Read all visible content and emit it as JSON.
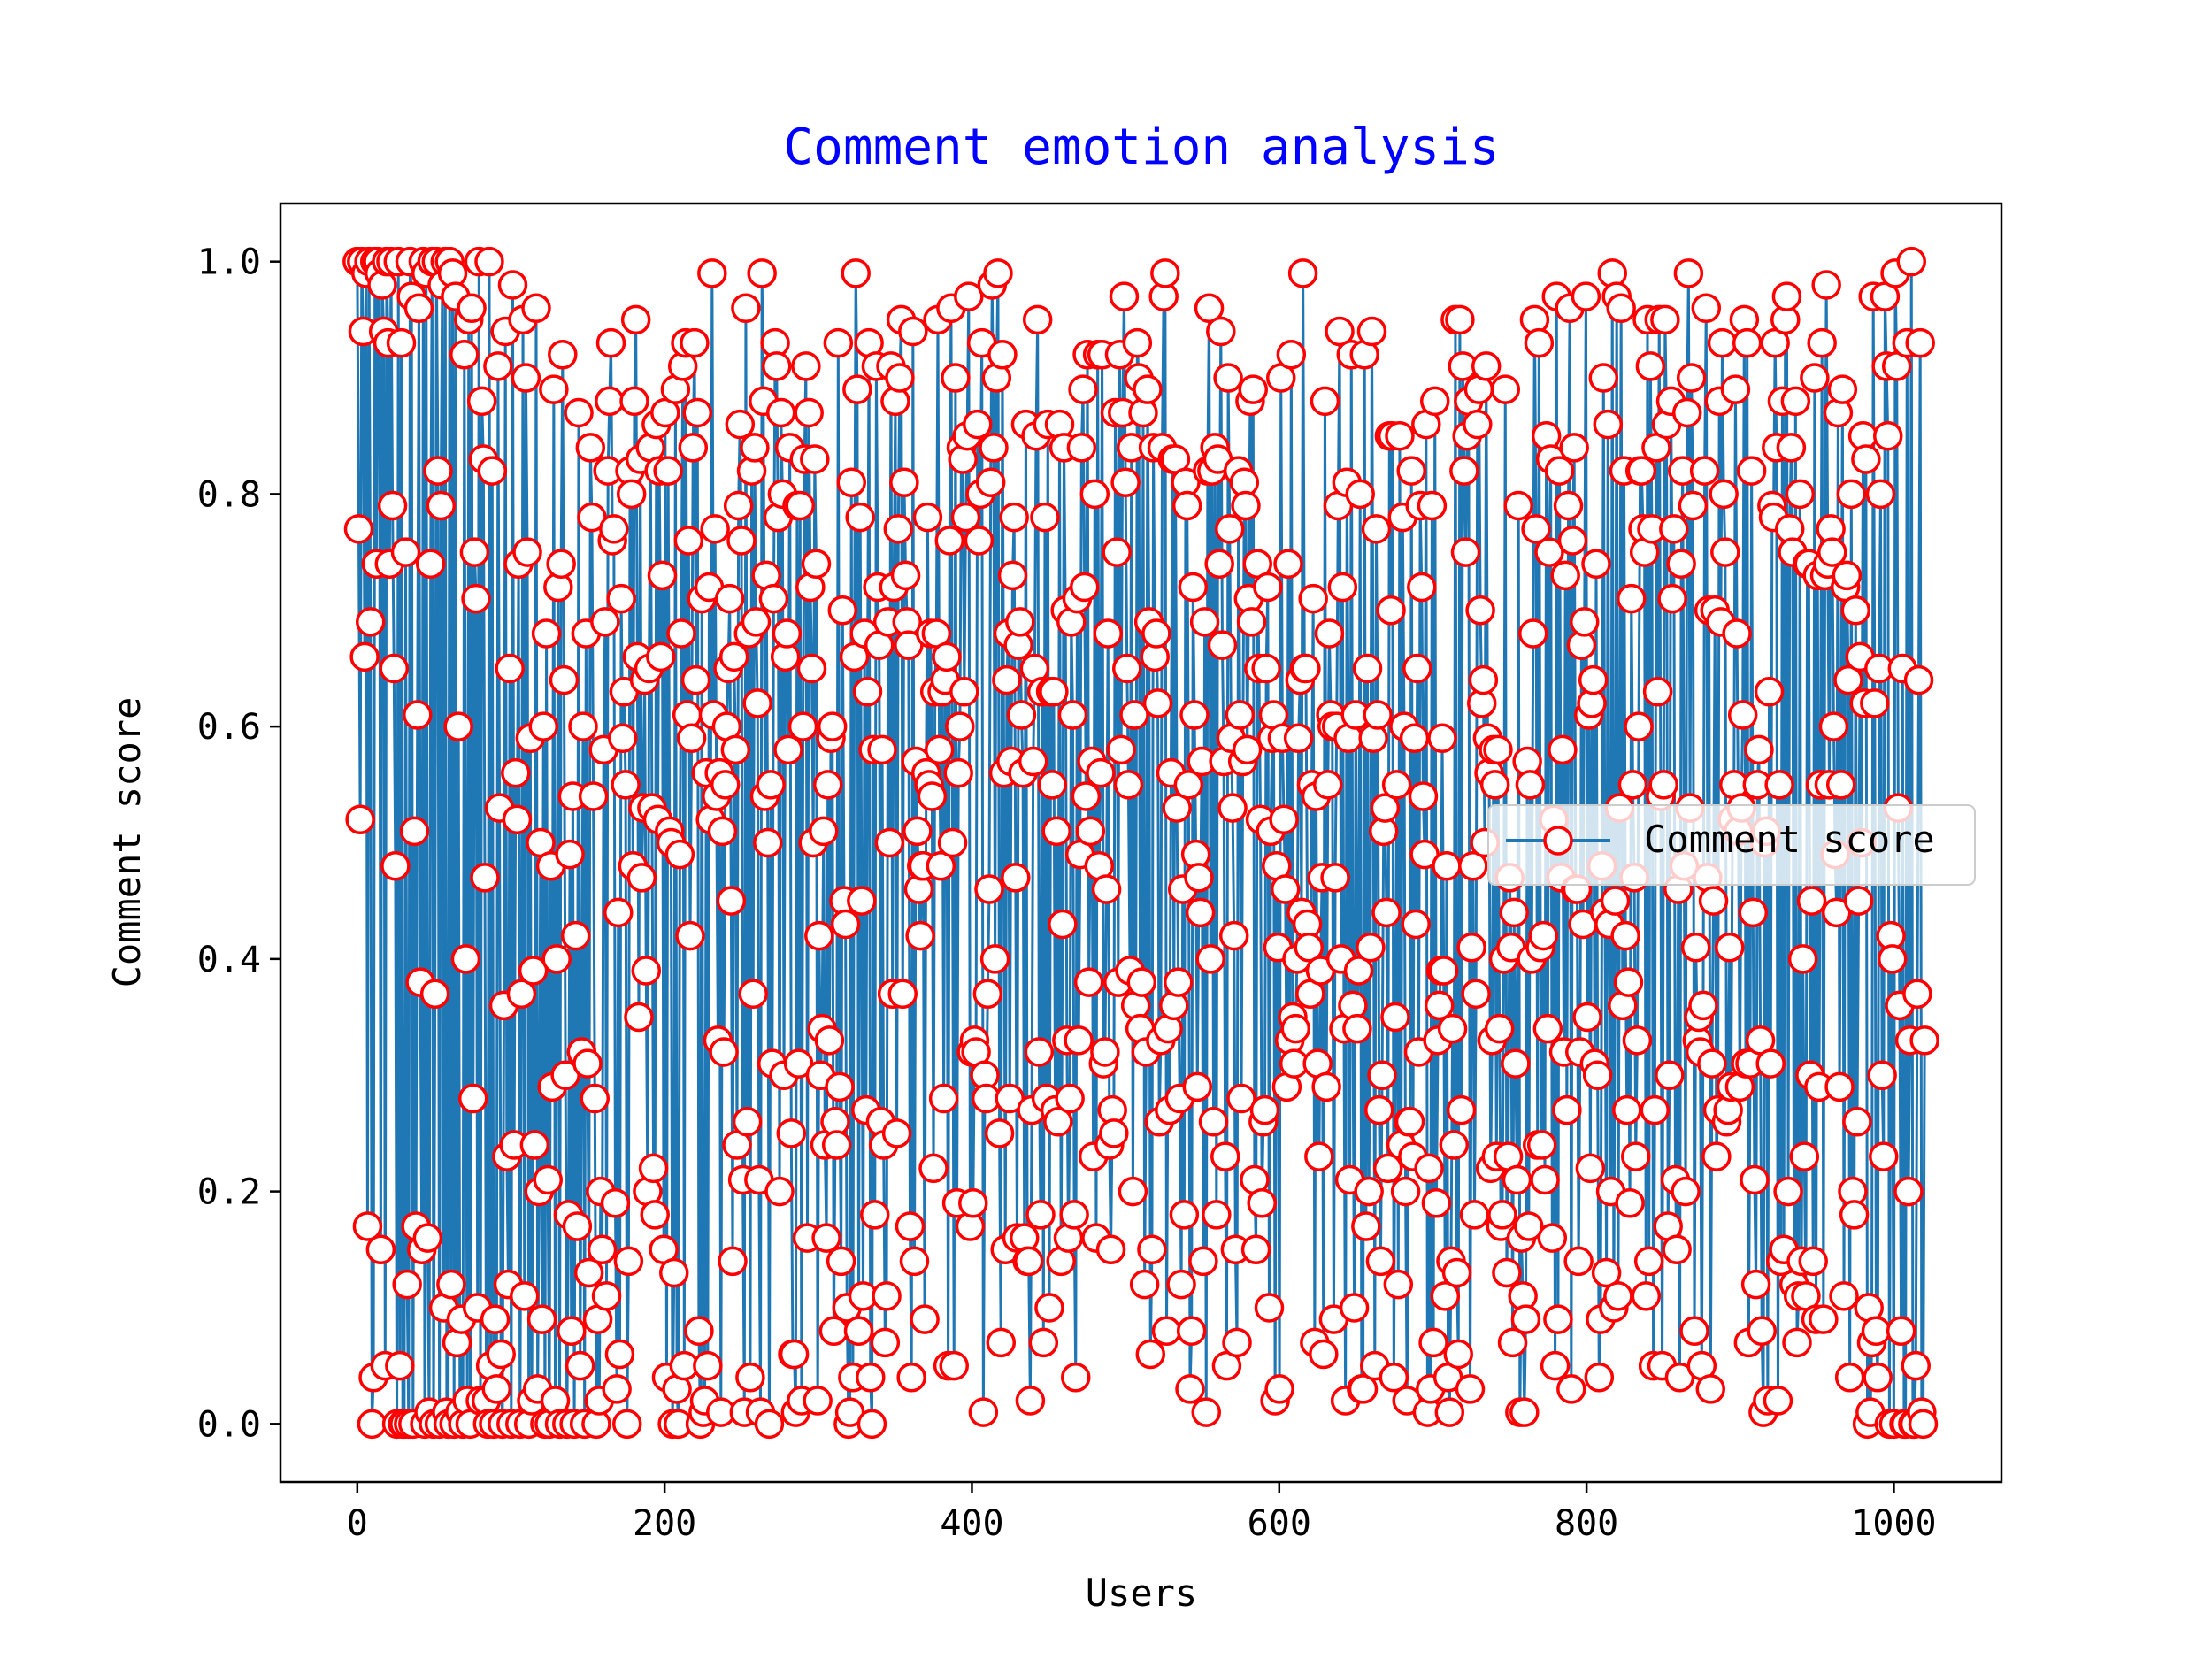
{
  "chart_data": {
    "type": "line",
    "title": "Comment emotion analysis",
    "xlabel": "Users",
    "ylabel": "Comment score",
    "xlim": [
      -50,
      1070
    ],
    "ylim": [
      -0.05,
      1.05
    ],
    "xticks": [
      "0",
      "200",
      "400",
      "600",
      "800",
      "1000"
    ],
    "yticks": [
      "0.0",
      "0.2",
      "0.4",
      "0.6",
      "0.8",
      "1.0"
    ],
    "grid": false,
    "legend_position": "center-right",
    "colors": {
      "title": "#0000ff",
      "line": "#1f77b4",
      "marker_edge": "#ff0000",
      "marker_face": "#ffffff"
    },
    "series": [
      {
        "name": "Comment score",
        "x_start": 0,
        "x_end": 1020,
        "point_count": 1021,
        "values": [
          1.0,
          0.77,
          0.52,
          1.0,
          0.94,
          0.66,
          0.99,
          0.17,
          1.0,
          0.69,
          0.0,
          0.04,
          1.0,
          0.74,
          1.0,
          0.99,
          0.15,
          0.98,
          0.94,
          0.05,
          1.0,
          0.93,
          0.74,
          1.0,
          0.79,
          0.65,
          0.48,
          0.0,
          1.0,
          0.05,
          0.93,
          0.0,
          0.0,
          0.75,
          0.12,
          0.0,
          1.0,
          0.97,
          0.0,
          0.51,
          0.17,
          0.61,
          0.96,
          0.38,
          0.15,
          1.0,
          0.0,
          0.99,
          0.16,
          0.01,
          0.74,
          1.0,
          0.0,
          0.37,
          1.0,
          0.82,
          0.0,
          0.79,
          0.98,
          0.1,
          1.0,
          0.01,
          0.0,
          1.0,
          0.12,
          0.99,
          0.0,
          0.97,
          0.07,
          0.6,
          0.01,
          0.09,
          0.0,
          0.92,
          0.4,
          0.02,
          0.95,
          0.0,
          0.96,
          0.28,
          0.75,
          0.71,
          0.1,
          1.0,
          0.02,
          0.88,
          0.83,
          0.47,
          0.02,
          0.0,
          1.0,
          0.05,
          0.82,
          0.0,
          0.09,
          0.03,
          0.91,
          0.53,
          0.06,
          0.0,
          0.36,
          0.94,
          0.23,
          0.12,
          0.65,
          0.0,
          0.98,
          0.24,
          0.56,
          0.52,
          0.74,
          0.0,
          0.37,
          0.95,
          0.11,
          0.9,
          0.75,
          0.0,
          0.59,
          0.02,
          0.39,
          0.24,
          0.96,
          0.03,
          0.2,
          0.5,
          0.09,
          0.6,
          0.0,
          0.68,
          0.21,
          0.0,
          0.48,
          0.29,
          0.89,
          0.02,
          0.4,
          0.72,
          0.0,
          0.74,
          0.92,
          0.64,
          0.3,
          0.0,
          0.18,
          0.49,
          0.08,
          0.54,
          0.0,
          0.42,
          0.17,
          0.87,
          0.05,
          0.32,
          0.6,
          0.0,
          0.68,
          0.31,
          0.13,
          0.84,
          0.78,
          0.54,
          0.28,
          0.0,
          0.09,
          0.02,
          0.2,
          0.15,
          0.58,
          0.69,
          0.11,
          0.82,
          0.88,
          0.93,
          0.76,
          0.77,
          0.19,
          0.03,
          0.44,
          0.06,
          0.71,
          0.59,
          0.63,
          0.55,
          0.0,
          0.14,
          0.82,
          0.8,
          0.48,
          0.88,
          0.95,
          0.66,
          0.35,
          0.83,
          0.47,
          0.53,
          0.64,
          0.39,
          0.2,
          0.65,
          0.84,
          0.53,
          0.22,
          0.18,
          0.86,
          0.52,
          0.82,
          0.66,
          0.73,
          0.15,
          0.87,
          0.04,
          0.82,
          0.51,
          0.5,
          0.0,
          0.13,
          0.89,
          0.03,
          0.0,
          0.49,
          0.68,
          0.91,
          0.05,
          0.93,
          0.61,
          0.76,
          0.42,
          0.59,
          0.84,
          0.93,
          0.64,
          0.87,
          0.08,
          0.0,
          0.71,
          0.01,
          0.02,
          0.56,
          0.05,
          0.72,
          0.52,
          0.99,
          0.61,
          0.77,
          0.54,
          0.33,
          0.56,
          0.01,
          0.51,
          0.32,
          0.55,
          0.6,
          0.65,
          0.71,
          0.45,
          0.14,
          0.66,
          0.58,
          0.24,
          0.79,
          0.86,
          0.76,
          0.21,
          0.01,
          0.96,
          0.26,
          0.68,
          0.04,
          0.82,
          0.37,
          0.84,
          0.69,
          0.62,
          0.21,
          0.01,
          0.99,
          0.88,
          0.54,
          0.73,
          0.5,
          0.0,
          0.55,
          0.31,
          0.71,
          0.93,
          0.91,
          0.78,
          0.2,
          0.87,
          0.8,
          0.3,
          0.66,
          0.68,
          0.58,
          0.84,
          0.25,
          0.06,
          0.06,
          0.01,
          0.79,
          0.31,
          0.79,
          0.02,
          0.6,
          0.83,
          0.91,
          0.16,
          0.87,
          0.72,
          0.65,
          0.5,
          0.83,
          0.74,
          0.02,
          0.42,
          0.3,
          0.34,
          0.51,
          0.24,
          0.16,
          0.55,
          0.33,
          0.59,
          0.6,
          0.08,
          0.26,
          0.24,
          0.93,
          0.29,
          0.14,
          0.7,
          0.45,
          0.43,
          0.1,
          0.0,
          0.01,
          0.81,
          0.04,
          0.66,
          0.99,
          0.89,
          0.08,
          0.78,
          0.45,
          0.11,
          0.68,
          0.27,
          0.63,
          0.93,
          0.04,
          0.0,
          0.58,
          0.18,
          0.91,
          0.72,
          0.67,
          0.26,
          0.58,
          0.24,
          0.07,
          0.11,
          0.69,
          0.5,
          0.91,
          0.37,
          0.72,
          0.88,
          0.25,
          0.77,
          0.9,
          0.95,
          0.37,
          0.81,
          0.73,
          0.69,
          0.67,
          0.17,
          0.04,
          0.94,
          0.14,
          0.57,
          0.51,
          0.46,
          0.42,
          0.48,
          0.48,
          0.09,
          0.56,
          0.78,
          0.55,
          0.68,
          0.54,
          0.22,
          0.63,
          0.68,
          0.95,
          0.58,
          0.48,
          0.63,
          0.28,
          0.64,
          0.66,
          0.05,
          0.76,
          0.96,
          0.5,
          0.05,
          0.9,
          0.19,
          0.56,
          0.6,
          0.84,
          0.83,
          0.63,
          0.78,
          0.85,
          0.97,
          0.17,
          0.32,
          0.19,
          0.33,
          0.32,
          0.86,
          0.76,
          0.8,
          0.93,
          0.01,
          0.3,
          0.28,
          0.37,
          0.46,
          0.81,
          0.98,
          0.84,
          0.4,
          0.9,
          0.99,
          0.25,
          0.07,
          0.92,
          0.56,
          0.15,
          0.64,
          0.68,
          0.28,
          0.57,
          0.73,
          0.78,
          0.47,
          0.16,
          0.67,
          0.69,
          0.61,
          0.56,
          0.16,
          0.86,
          0.14,
          0.14,
          0.02,
          0.27,
          0.57,
          0.65,
          0.85,
          0.95,
          0.32,
          0.18,
          0.63,
          0.07,
          0.78,
          0.28,
          0.86,
          0.1,
          0.63,
          0.55,
          0.63,
          0.27,
          0.51,
          0.26,
          0.86,
          0.14,
          0.43,
          0.84,
          0.7,
          0.33,
          0.16,
          0.28,
          0.69,
          0.61,
          0.18,
          0.04,
          0.71,
          0.33,
          0.49,
          0.84,
          0.89,
          0.72,
          0.54,
          0.92,
          0.38,
          0.51,
          0.57,
          0.23,
          0.8,
          0.16,
          0.92,
          0.48,
          0.56,
          0.92,
          0.31,
          0.32,
          0.46,
          0.68,
          0.24,
          0.15,
          0.27,
          0.25,
          0.87,
          0.75,
          0.38,
          0.92,
          0.58,
          0.87,
          0.97,
          0.81,
          0.65,
          0.55,
          0.39,
          0.84,
          0.2,
          0.61,
          0.36,
          0.93,
          0.9,
          0.34,
          0.38,
          0.87,
          0.12,
          0.32,
          0.89,
          0.69,
          0.06,
          0.15,
          0.84,
          0.66,
          0.68,
          0.62,
          0.26,
          0.33,
          0.84,
          0.97,
          0.99,
          0.08,
          0.34,
          0.27,
          0.56,
          0.83,
          0.36,
          0.83,
          0.53,
          0.38,
          0.28,
          0.12,
          0.46,
          0.18,
          0.81,
          0.79,
          0.55,
          0.03,
          0.08,
          0.72,
          0.61,
          0.49,
          0.29,
          0.47,
          0.44,
          0.57,
          0.14,
          0.69,
          0.01,
          0.82,
          0.96,
          0.4,
          0.82,
          0.26,
          0.84,
          0.18,
          0.83,
          0.74,
          0.94,
          0.67,
          0.57,
          0.23,
          0.05,
          0.9,
          0.77,
          0.59,
          0.53,
          0.42,
          0.15,
          0.07,
          0.82,
          0.61,
          0.28,
          0.57,
          0.81,
          0.79,
          0.58,
          0.71,
          0.88,
          0.69,
          0.89,
          0.21,
          0.15,
          0.74,
          0.65,
          0.52,
          0.19,
          0.26,
          0.27,
          0.65,
          0.72,
          0.1,
          0.51,
          0.59,
          0.61,
          0.02,
          0.48,
          0.41,
          0.03,
          0.9,
          0.59,
          0.52,
          0.46,
          0.29,
          0.74,
          0.33,
          0.92,
          0.35,
          0.31,
          0.34,
          0.4,
          0.59,
          0.64,
          0.44,
          0.99,
          0.65,
          0.65,
          0.43,
          0.41,
          0.37,
          0.55,
          0.71,
          0.07,
          0.54,
          0.31,
          0.23,
          0.39,
          0.47,
          0.06,
          0.88,
          0.29,
          0.55,
          0.68,
          0.61,
          0.6,
          0.09,
          0.47,
          0.6,
          0.79,
          0.94,
          0.4,
          0.72,
          0.34,
          0.02,
          0.81,
          0.59,
          0.21,
          0.92,
          0.36,
          0.1,
          0.61,
          0.34,
          0.39,
          0.8,
          0.03,
          0.03,
          0.92,
          0.17,
          0.65,
          0.2,
          0.41,
          0.94,
          0.59,
          0.05,
          0.77,
          0.61,
          0.27,
          0.14,
          0.3,
          0.51,
          0.53,
          0.44,
          0.22,
          0.85,
          0.7,
          0.85,
          0.04,
          0.35,
          0.55,
          0.12,
          0.85,
          0.24,
          0.78,
          0.6,
          0.2,
          0.02,
          0.26,
          0.26,
          0.82,
          0.23,
          0.59,
          0.43,
          0.65,
          0.32,
          0.79,
          0.72,
          0.54,
          0.49,
          0.86,
          0.01,
          0.22,
          0.03,
          0.79,
          0.07,
          0.88,
          0.19,
          0.33,
          0.36,
          0.39,
          0.59,
          0.39,
          0.11,
          0.48,
          0.04,
          0.01,
          0.14,
          0.34,
          0.24,
          0.95,
          0.13,
          0.06,
          0.95,
          0.27,
          0.91,
          0.82,
          0.75,
          0.85,
          0.88,
          0.03,
          0.41,
          0.48,
          0.18,
          0.37,
          0.86,
          0.89,
          0.7,
          0.62,
          0.64,
          0.5,
          0.91,
          0.59,
          0.56,
          0.22,
          0.33,
          0.58,
          0.55,
          0.23,
          0.58,
          0.34,
          0.17,
          0.18,
          0.4,
          0.89,
          0.13,
          0.23,
          0.47,
          0.41,
          0.07,
          0.44,
          0.31,
          0.21,
          0.79,
          0.01,
          0.16,
          0.11,
          0.01,
          0.09,
          0.57,
          0.17,
          0.55,
          0.4,
          0.68,
          0.95,
          0.77,
          0.24,
          0.93,
          0.41,
          0.24,
          0.42,
          0.21,
          0.85,
          0.34,
          0.75,
          0.83,
          0.16,
          0.52,
          0.05,
          0.97,
          0.09,
          0.82,
          0.47,
          0.58,
          0.32,
          0.73,
          0.27,
          0.79,
          0.96,
          0.03,
          0.76,
          0.84,
          0.46,
          0.46,
          0.14,
          0.32,
          0.67,
          0.43,
          0.69,
          0.97,
          0.35,
          0.61,
          0.22,
          0.62,
          0.64,
          0.31,
          0.74,
          0.3,
          0.04,
          0.09,
          0.48,
          0.9,
          0.44,
          0.13,
          0.86,
          0.43,
          0.2,
          0.99,
          0.1,
          0.45,
          0.97,
          0.11,
          0.53,
          0.96,
          0.36,
          0.82,
          0.42,
          0.27,
          0.38,
          0.19,
          0.71,
          0.55,
          0.47,
          0.23,
          0.33,
          0.6,
          0.82,
          0.82,
          0.77,
          0.75,
          0.11,
          0.95,
          0.14,
          0.91,
          0.77,
          0.05,
          0.27,
          0.84,
          0.63,
          0.95,
          0.54,
          0.05,
          0.55,
          0.95,
          0.86,
          0.17,
          0.3,
          0.88,
          0.71,
          0.77,
          0.21,
          0.15,
          0.46,
          0.04,
          0.74,
          0.82,
          0.48,
          0.2,
          0.87,
          0.99,
          0.53,
          0.9,
          0.79,
          0.08,
          0.41,
          0.33,
          0.35,
          0.32,
          0.05,
          0.36,
          0.82,
          0.96,
          0.47,
          0.7,
          0.03,
          0.31,
          0.45,
          0.7,
          0.23,
          0.27,
          0.88,
          0.69,
          0.93,
          0.8,
          0.75,
          0.26,
          0.27,
          0.41,
          0.29,
          0.52,
          0.55,
          0.89,
          0.68,
          0.51,
          0.29,
          0.53,
          0.61,
          0.95,
          0.31,
          0.93,
          0.07,
          0.31,
          0.82,
          0.44,
          0.21,
          0.12,
          0.55,
          0.58,
          0.33,
          0.08,
          0.01,
          0.5,
          0.51,
          0.02,
          0.63,
          0.31,
          0.79,
          0.78,
          0.93,
          0.84,
          0.02,
          0.55,
          0.14,
          0.88,
          0.15,
          0.95,
          0.97,
          0.2,
          0.77,
          0.84,
          0.75,
          0.12,
          0.88,
          0.07,
          0.11,
          0.8,
          0.14,
          0.4,
          0.23,
          0.11,
          0.74,
          0.74,
          0.3,
          0.45,
          0.14,
          0.9,
          0.09,
          0.73,
          0.29,
          0.55,
          0.93,
          0.09,
          0.73,
          0.98,
          0.74,
          0.55,
          0.77,
          0.75,
          0.6,
          0.49,
          0.44,
          0.87,
          0.29,
          0.55,
          0.89,
          0.11,
          0.72,
          0.73,
          0.64,
          0.04,
          0.8,
          0.2,
          0.18,
          0.7,
          0.26,
          0.45,
          0.66,
          0.5,
          0.85,
          0.62,
          0.83,
          0.0,
          0.1,
          0.01,
          0.07,
          0.97,
          0.62,
          0.08,
          0.04,
          0.65,
          0.8,
          0.3,
          0.23,
          0.97,
          0.91,
          0.85,
          0.0,
          0.42,
          0.4,
          0.0,
          0.99,
          0.91,
          0.53,
          0.36,
          0.08,
          0.65,
          0.0,
          0.0,
          0.93,
          0.2,
          0.33,
          1.0,
          0.0,
          0.0,
          0.05,
          0.37,
          0.64,
          0.93,
          0.01,
          0.0,
          0.33
        ]
      }
    ]
  }
}
